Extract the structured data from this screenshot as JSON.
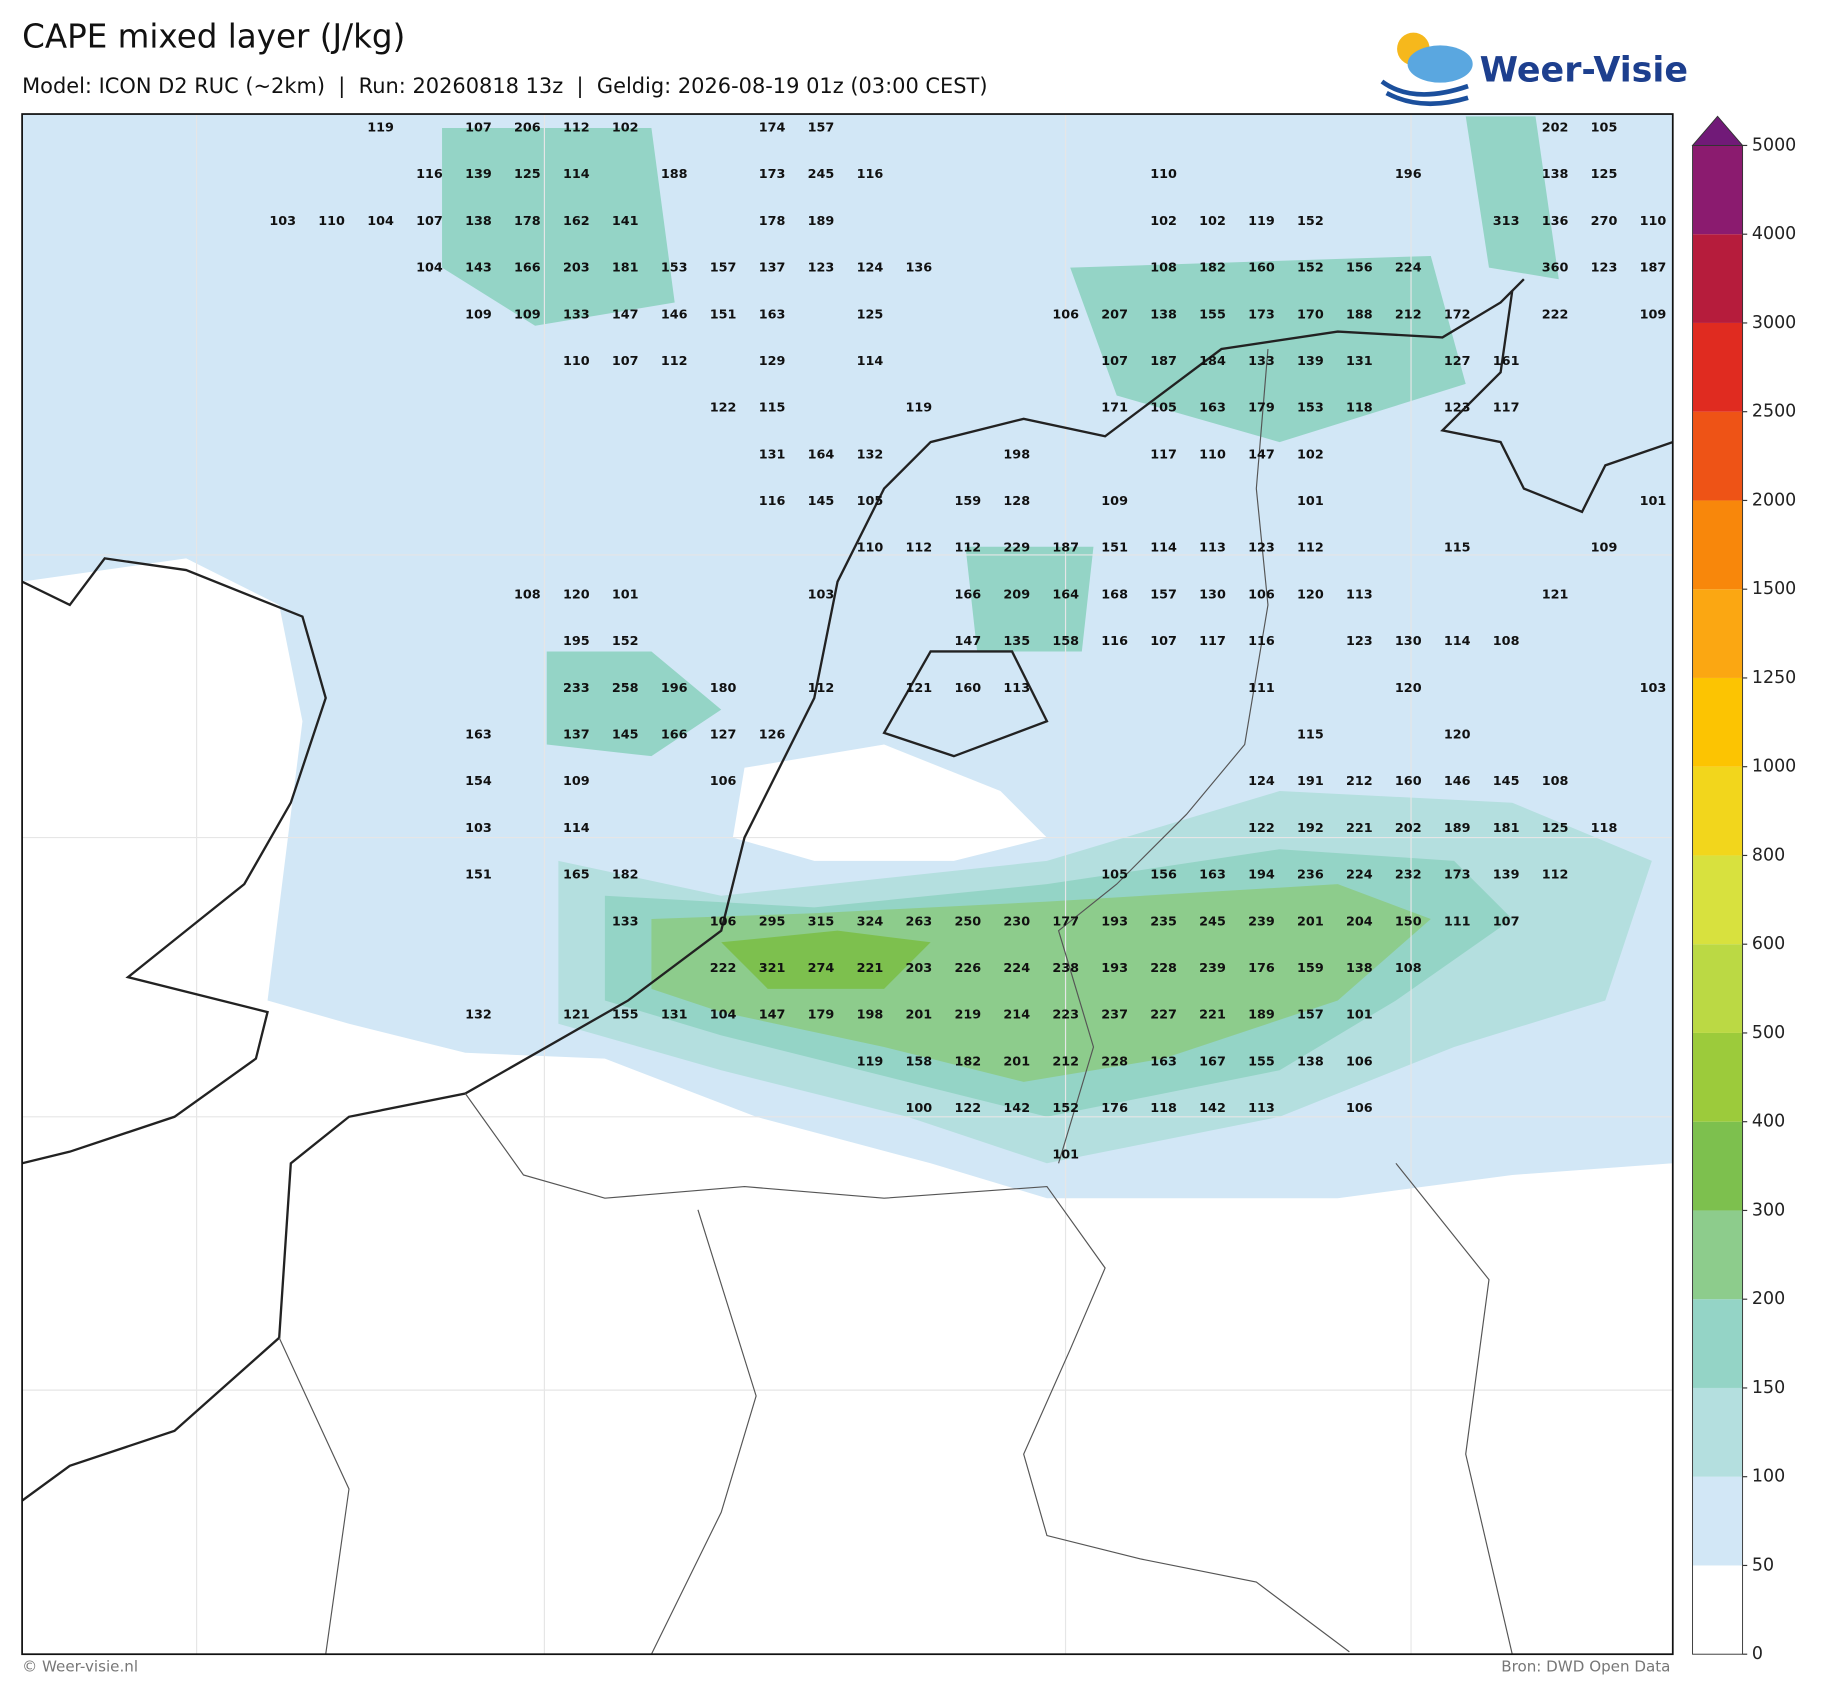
{
  "header": {
    "title": "CAPE mixed layer (J/kg)",
    "subtitle": "Model: ICON D2 RUC (~2km)  |  Run: 20260818 13z  |  Geldig: 2026-08-19 01z (03:00 CEST)"
  },
  "logo": {
    "text": "Weer-Visie"
  },
  "map": {
    "labels": [
      [
        null,
        null,
        119,
        null,
        107,
        206,
        112,
        102,
        null,
        null,
        174,
        157,
        null,
        null,
        null,
        null,
        null,
        null,
        null,
        null,
        null,
        null,
        null,
        null,
        null,
        null,
        202,
        105,
        null
      ],
      [
        null,
        null,
        null,
        116,
        139,
        125,
        114,
        null,
        188,
        null,
        173,
        245,
        116,
        null,
        null,
        null,
        null,
        null,
        110,
        null,
        null,
        null,
        null,
        196,
        null,
        null,
        138,
        125,
        null
      ],
      [
        103,
        110,
        104,
        107,
        138,
        178,
        162,
        141,
        null,
        null,
        178,
        189,
        null,
        null,
        null,
        null,
        null,
        null,
        102,
        102,
        119,
        152,
        null,
        null,
        null,
        313,
        136,
        270,
        110
      ],
      [
        null,
        null,
        null,
        104,
        143,
        166,
        203,
        181,
        153,
        157,
        137,
        123,
        124,
        136,
        null,
        null,
        null,
        null,
        108,
        182,
        160,
        152,
        156,
        224,
        null,
        null,
        360,
        123,
        187
      ],
      [
        null,
        null,
        null,
        null,
        109,
        109,
        133,
        147,
        146,
        151,
        163,
        null,
        125,
        null,
        null,
        null,
        106,
        207,
        138,
        155,
        173,
        170,
        188,
        212,
        172,
        null,
        222,
        null,
        109
      ],
      [
        null,
        null,
        null,
        null,
        null,
        null,
        110,
        107,
        112,
        null,
        129,
        null,
        114,
        null,
        null,
        null,
        null,
        107,
        187,
        184,
        133,
        139,
        131,
        null,
        127,
        161,
        null,
        null,
        null
      ],
      [
        null,
        null,
        null,
        null,
        null,
        null,
        null,
        null,
        null,
        122,
        115,
        null,
        null,
        119,
        null,
        null,
        null,
        171,
        105,
        163,
        179,
        153,
        118,
        null,
        123,
        117,
        null,
        null,
        null
      ],
      [
        null,
        null,
        null,
        null,
        null,
        null,
        null,
        null,
        null,
        null,
        131,
        164,
        132,
        null,
        null,
        198,
        null,
        null,
        117,
        110,
        147,
        102,
        null,
        null,
        null,
        null,
        null,
        null,
        null
      ],
      [
        null,
        null,
        null,
        null,
        null,
        null,
        null,
        null,
        null,
        null,
        116,
        145,
        105,
        null,
        159,
        128,
        null,
        109,
        null,
        null,
        null,
        101,
        null,
        null,
        null,
        null,
        null,
        null,
        101
      ],
      [
        null,
        null,
        null,
        null,
        null,
        null,
        null,
        null,
        null,
        null,
        null,
        null,
        110,
        112,
        112,
        229,
        187,
        151,
        114,
        113,
        123,
        112,
        null,
        null,
        115,
        null,
        null,
        109,
        null
      ],
      [
        null,
        null,
        null,
        null,
        null,
        108,
        120,
        101,
        null,
        null,
        null,
        103,
        null,
        null,
        166,
        209,
        164,
        168,
        157,
        130,
        106,
        120,
        113,
        null,
        null,
        null,
        121,
        null,
        null
      ],
      [
        null,
        null,
        null,
        null,
        null,
        null,
        195,
        152,
        null,
        null,
        null,
        null,
        null,
        null,
        147,
        135,
        158,
        116,
        107,
        117,
        116,
        null,
        123,
        130,
        114,
        108,
        null,
        null,
        null
      ],
      [
        null,
        null,
        null,
        null,
        null,
        null,
        233,
        258,
        196,
        180,
        null,
        112,
        null,
        121,
        160,
        113,
        null,
        null,
        null,
        null,
        111,
        null,
        null,
        120,
        null,
        null,
        null,
        null,
        103
      ],
      [
        null,
        null,
        null,
        null,
        163,
        null,
        137,
        145,
        166,
        127,
        126,
        null,
        null,
        null,
        null,
        null,
        null,
        null,
        null,
        null,
        null,
        115,
        null,
        null,
        120,
        null,
        null,
        null,
        null
      ],
      [
        null,
        null,
        null,
        null,
        154,
        null,
        109,
        null,
        null,
        106,
        null,
        null,
        null,
        null,
        null,
        null,
        null,
        null,
        null,
        null,
        124,
        191,
        212,
        160,
        146,
        145,
        108,
        null,
        null
      ],
      [
        null,
        null,
        null,
        null,
        103,
        null,
        114,
        null,
        null,
        null,
        null,
        null,
        null,
        null,
        null,
        null,
        null,
        null,
        null,
        null,
        122,
        192,
        221,
        202,
        189,
        181,
        125,
        118,
        null
      ],
      [
        null,
        null,
        null,
        null,
        151,
        null,
        165,
        182,
        null,
        null,
        null,
        null,
        null,
        null,
        null,
        null,
        null,
        105,
        156,
        163,
        194,
        236,
        224,
        232,
        173,
        139,
        112,
        null,
        null
      ],
      [
        null,
        null,
        null,
        null,
        null,
        null,
        null,
        133,
        null,
        106,
        295,
        315,
        324,
        263,
        250,
        230,
        177,
        193,
        235,
        245,
        239,
        201,
        204,
        150,
        111,
        107,
        null,
        null,
        null
      ],
      [
        null,
        null,
        null,
        null,
        null,
        null,
        null,
        null,
        null,
        222,
        321,
        274,
        221,
        203,
        226,
        224,
        238,
        193,
        228,
        239,
        176,
        159,
        138,
        108,
        null,
        null,
        null,
        null,
        null
      ],
      [
        null,
        null,
        null,
        null,
        132,
        null,
        121,
        155,
        131,
        104,
        147,
        179,
        198,
        201,
        219,
        214,
        223,
        237,
        227,
        221,
        189,
        157,
        101,
        null,
        null,
        null,
        null,
        null,
        null
      ],
      [
        null,
        null,
        null,
        null,
        null,
        null,
        null,
        null,
        null,
        null,
        null,
        null,
        119,
        158,
        182,
        201,
        212,
        228,
        163,
        167,
        155,
        138,
        106,
        null,
        null,
        null,
        null,
        null,
        null
      ],
      [
        null,
        null,
        null,
        null,
        null,
        null,
        null,
        null,
        null,
        null,
        null,
        null,
        null,
        100,
        122,
        142,
        152,
        176,
        118,
        142,
        113,
        null,
        106,
        null,
        null,
        null,
        null,
        null,
        null
      ],
      [
        null,
        null,
        null,
        null,
        null,
        null,
        null,
        null,
        null,
        null,
        null,
        null,
        null,
        null,
        null,
        null,
        101,
        null,
        null,
        null,
        null,
        null,
        null,
        null,
        null,
        null,
        null,
        null,
        null
      ]
    ]
  },
  "colorbar": {
    "levels": [
      0,
      50,
      100,
      150,
      200,
      300,
      400,
      500,
      600,
      800,
      1000,
      1250,
      1500,
      2000,
      2500,
      3000,
      4000,
      5000
    ],
    "colors": [
      "#ffffff",
      "#d2e7f6",
      "#b4dfdf",
      "#94d4c6",
      "#8dcc8c",
      "#7dc04e",
      "#9ccb3b",
      "#bbd944",
      "#d8e13e",
      "#f2d61c",
      "#fcc402",
      "#fba712",
      "#f8870b",
      "#ee5316",
      "#e02b20",
      "#b61c3c",
      "#8b1b6f"
    ],
    "extend_color": "#711a78"
  },
  "footer": {
    "left": "© Weer-visie.nl",
    "right": "Bron: DWD Open Data"
  }
}
